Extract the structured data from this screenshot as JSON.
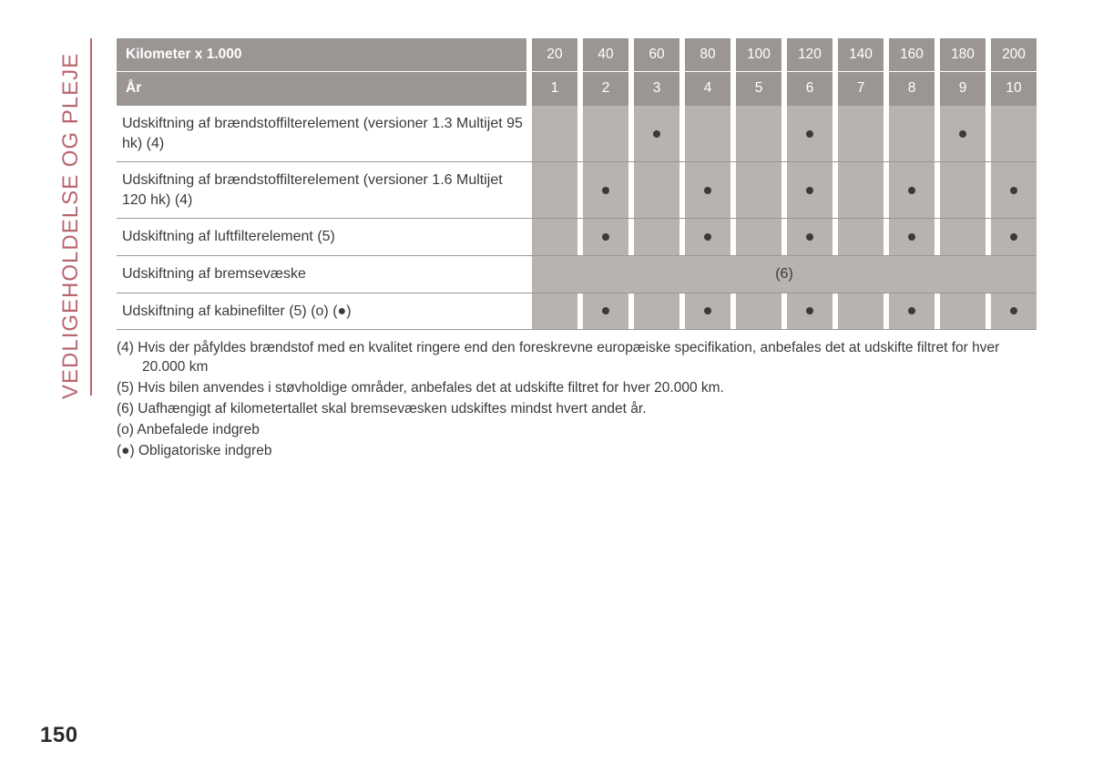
{
  "section_title": "VEDLIGEHOLDELSE OG PLEJE",
  "page_number": "150",
  "table": {
    "header_km": {
      "label": "Kilometer x 1.000",
      "values": [
        "20",
        "40",
        "60",
        "80",
        "100",
        "120",
        "140",
        "160",
        "180",
        "200"
      ]
    },
    "header_yr": {
      "label": "År",
      "values": [
        "1",
        "2",
        "3",
        "4",
        "5",
        "6",
        "7",
        "8",
        "9",
        "10"
      ]
    },
    "rows": [
      {
        "label": "Udskiftning af brændstoffilterelement (versioner 1.3 Multijet 95 hk) (4)",
        "marks": [
          "",
          "",
          "●",
          "",
          "",
          "●",
          "",
          "",
          "●",
          ""
        ]
      },
      {
        "label": "Udskiftning af brændstoffilterelement (versioner 1.6 Multijet 120 hk) (4)",
        "marks": [
          "",
          "●",
          "",
          "●",
          "",
          "●",
          "",
          "●",
          "",
          "●"
        ]
      },
      {
        "label": "Udskiftning af luftfilterelement (5)",
        "marks": [
          "",
          "●",
          "",
          "●",
          "",
          "●",
          "",
          "●",
          "",
          "●"
        ]
      },
      {
        "label": "Udskiftning af bremsevæske",
        "span_note": "(6)"
      },
      {
        "label": "Udskiftning af kabinefilter (5) (o) (●)",
        "marks": [
          "",
          "●",
          "",
          "●",
          "",
          "●",
          "",
          "●",
          "",
          "●"
        ]
      }
    ]
  },
  "footnotes": [
    "(4) Hvis der påfyldes brændstof med en kvalitet ringere end den foreskrevne europæiske specifikation, anbefales det at udskifte filtret for hver 20.000 km",
    "(5) Hvis bilen anvendes i støvholdige områder, anbefales det at udskifte filtret for hver 20.000 km.",
    "(6) Uafhængigt af kilometertallet skal bremsevæsken udskiftes mindst hvert andet år.",
    "(o) Anbefalede indgreb",
    "(●) Obligatoriske indgreb"
  ],
  "colors": {
    "header_bg": "#9b9694",
    "body_col_bg": "#b7b3b1",
    "accent": "#b9656e",
    "text": "#3a3a3a"
  }
}
